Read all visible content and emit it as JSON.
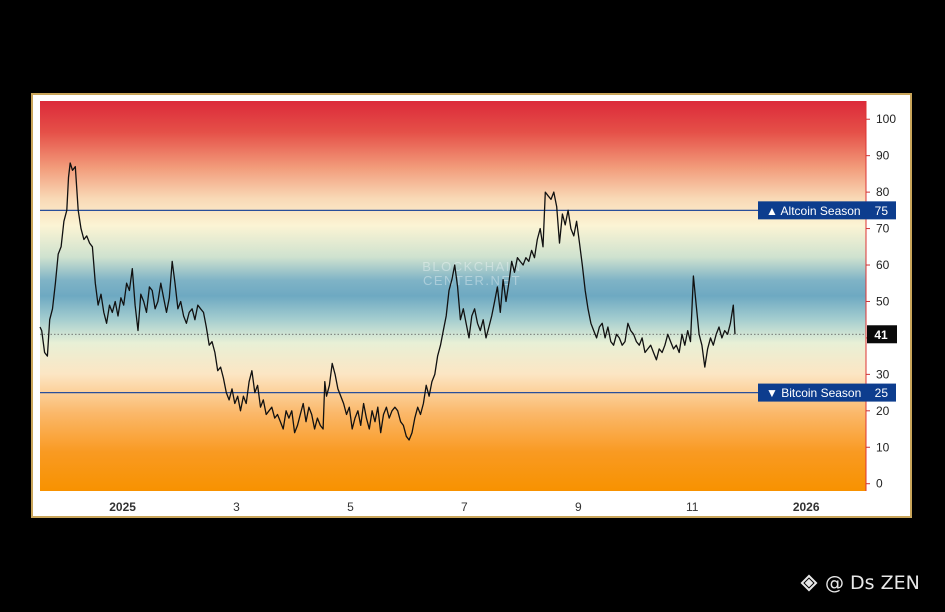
{
  "chart_data": {
    "type": "line",
    "title": "",
    "xlabel": "",
    "ylabel": "",
    "ylim": [
      -2,
      105
    ],
    "y_ticks": [
      "0",
      "10",
      "20",
      "30",
      "40",
      "50",
      "60",
      "70",
      "80",
      "90",
      "100"
    ],
    "x_ticks": [
      "2025",
      "3",
      "5",
      "7",
      "9",
      "11",
      "2026"
    ],
    "x_tick_months": [
      0,
      2,
      4,
      6,
      8,
      10,
      12
    ],
    "x_range_months": [
      -1.45,
      13.05
    ],
    "current_value": "41",
    "thresholds": [
      {
        "label": "▲ Altcoin Season",
        "value": 75,
        "value_label": "75"
      },
      {
        "label": "▼ Bitcoin Season",
        "value": 25,
        "value_label": "25"
      }
    ],
    "gridlines": false,
    "background": "red-to-orange gradient bands",
    "series": [
      {
        "color": "#111111",
        "points": [
          [
            -1.45,
            43
          ],
          [
            -1.42,
            42
          ],
          [
            -1.37,
            36
          ],
          [
            -1.32,
            35
          ],
          [
            -1.28,
            45
          ],
          [
            -1.23,
            48
          ],
          [
            -1.18,
            55
          ],
          [
            -1.13,
            63
          ],
          [
            -1.08,
            65
          ],
          [
            -1.03,
            72
          ],
          [
            -0.98,
            75
          ],
          [
            -0.95,
            84
          ],
          [
            -0.92,
            88
          ],
          [
            -0.88,
            86
          ],
          [
            -0.83,
            87
          ],
          [
            -0.78,
            75
          ],
          [
            -0.73,
            70
          ],
          [
            -0.68,
            67
          ],
          [
            -0.63,
            68
          ],
          [
            -0.58,
            66
          ],
          [
            -0.53,
            65
          ],
          [
            -0.48,
            55
          ],
          [
            -0.43,
            49
          ],
          [
            -0.38,
            52
          ],
          [
            -0.33,
            47
          ],
          [
            -0.28,
            44
          ],
          [
            -0.23,
            49
          ],
          [
            -0.18,
            47
          ],
          [
            -0.13,
            50
          ],
          [
            -0.08,
            46
          ],
          [
            -0.03,
            51
          ],
          [
            0.02,
            49
          ],
          [
            0.07,
            55
          ],
          [
            0.12,
            53
          ],
          [
            0.17,
            59
          ],
          [
            0.22,
            49
          ],
          [
            0.27,
            42
          ],
          [
            0.32,
            52
          ],
          [
            0.37,
            50
          ],
          [
            0.42,
            47
          ],
          [
            0.47,
            54
          ],
          [
            0.52,
            53
          ],
          [
            0.57,
            48
          ],
          [
            0.62,
            50
          ],
          [
            0.67,
            55
          ],
          [
            0.72,
            51
          ],
          [
            0.77,
            47
          ],
          [
            0.82,
            51
          ],
          [
            0.87,
            61
          ],
          [
            0.92,
            55
          ],
          [
            0.97,
            48
          ],
          [
            1.02,
            50
          ],
          [
            1.07,
            46
          ],
          [
            1.12,
            44
          ],
          [
            1.17,
            47
          ],
          [
            1.22,
            48
          ],
          [
            1.27,
            45
          ],
          [
            1.32,
            49
          ],
          [
            1.37,
            48
          ],
          [
            1.42,
            47
          ],
          [
            1.47,
            43
          ],
          [
            1.52,
            38
          ],
          [
            1.57,
            39
          ],
          [
            1.62,
            36
          ],
          [
            1.67,
            31
          ],
          [
            1.72,
            32
          ],
          [
            1.77,
            29
          ],
          [
            1.82,
            25
          ],
          [
            1.87,
            23
          ],
          [
            1.92,
            26
          ],
          [
            1.97,
            22
          ],
          [
            2.02,
            24
          ],
          [
            2.07,
            20
          ],
          [
            2.12,
            24
          ],
          [
            2.17,
            22
          ],
          [
            2.22,
            28
          ],
          [
            2.27,
            31
          ],
          [
            2.32,
            25
          ],
          [
            2.37,
            27
          ],
          [
            2.42,
            21
          ],
          [
            2.47,
            23
          ],
          [
            2.52,
            19
          ],
          [
            2.57,
            20
          ],
          [
            2.62,
            21
          ],
          [
            2.67,
            18
          ],
          [
            2.72,
            19
          ],
          [
            2.77,
            17
          ],
          [
            2.82,
            15
          ],
          [
            2.87,
            20
          ],
          [
            2.92,
            18
          ],
          [
            2.97,
            20
          ],
          [
            3.02,
            14
          ],
          [
            3.07,
            16
          ],
          [
            3.12,
            19
          ],
          [
            3.17,
            22
          ],
          [
            3.22,
            17
          ],
          [
            3.27,
            21
          ],
          [
            3.32,
            19
          ],
          [
            3.37,
            15
          ],
          [
            3.42,
            18
          ],
          [
            3.47,
            16
          ],
          [
            3.52,
            15
          ],
          [
            3.55,
            28
          ],
          [
            3.58,
            24
          ],
          [
            3.63,
            27
          ],
          [
            3.68,
            33
          ],
          [
            3.73,
            30
          ],
          [
            3.78,
            26
          ],
          [
            3.83,
            24
          ],
          [
            3.88,
            22
          ],
          [
            3.93,
            19
          ],
          [
            3.98,
            21
          ],
          [
            4.03,
            15
          ],
          [
            4.08,
            18
          ],
          [
            4.13,
            20
          ],
          [
            4.18,
            16
          ],
          [
            4.23,
            22
          ],
          [
            4.28,
            18
          ],
          [
            4.33,
            15
          ],
          [
            4.38,
            20
          ],
          [
            4.43,
            17
          ],
          [
            4.48,
            21
          ],
          [
            4.53,
            14
          ],
          [
            4.58,
            19
          ],
          [
            4.63,
            21
          ],
          [
            4.68,
            18
          ],
          [
            4.73,
            20
          ],
          [
            4.78,
            21
          ],
          [
            4.83,
            20
          ],
          [
            4.88,
            17
          ],
          [
            4.93,
            16
          ],
          [
            4.98,
            13
          ],
          [
            5.03,
            12
          ],
          [
            5.08,
            14
          ],
          [
            5.13,
            18
          ],
          [
            5.18,
            21
          ],
          [
            5.23,
            19
          ],
          [
            5.28,
            22
          ],
          [
            5.33,
            27
          ],
          [
            5.38,
            24
          ],
          [
            5.43,
            28
          ],
          [
            5.48,
            30
          ],
          [
            5.53,
            35
          ],
          [
            5.58,
            38
          ],
          [
            5.63,
            42
          ],
          [
            5.68,
            46
          ],
          [
            5.73,
            53
          ],
          [
            5.78,
            56
          ],
          [
            5.83,
            60
          ],
          [
            5.88,
            54
          ],
          [
            5.93,
            45
          ],
          [
            5.98,
            48
          ],
          [
            6.03,
            44
          ],
          [
            6.08,
            40
          ],
          [
            6.13,
            46
          ],
          [
            6.18,
            48
          ],
          [
            6.23,
            44
          ],
          [
            6.28,
            42
          ],
          [
            6.33,
            45
          ],
          [
            6.38,
            40
          ],
          [
            6.43,
            43
          ],
          [
            6.48,
            46
          ],
          [
            6.53,
            50
          ],
          [
            6.58,
            54
          ],
          [
            6.63,
            47
          ],
          [
            6.68,
            56
          ],
          [
            6.73,
            50
          ],
          [
            6.78,
            55
          ],
          [
            6.83,
            61
          ],
          [
            6.88,
            58
          ],
          [
            6.93,
            62
          ],
          [
            6.98,
            61
          ],
          [
            7.03,
            60
          ],
          [
            7.08,
            62
          ],
          [
            7.13,
            61
          ],
          [
            7.18,
            64
          ],
          [
            7.23,
            62
          ],
          [
            7.28,
            67
          ],
          [
            7.33,
            70
          ],
          [
            7.38,
            65
          ],
          [
            7.42,
            80
          ],
          [
            7.47,
            79
          ],
          [
            7.52,
            78
          ],
          [
            7.57,
            80
          ],
          [
            7.62,
            76
          ],
          [
            7.67,
            66
          ],
          [
            7.72,
            74
          ],
          [
            7.77,
            71
          ],
          [
            7.82,
            75
          ],
          [
            7.87,
            70
          ],
          [
            7.92,
            68
          ],
          [
            7.97,
            72
          ],
          [
            8.02,
            66
          ],
          [
            8.07,
            60
          ],
          [
            8.12,
            53
          ],
          [
            8.17,
            48
          ],
          [
            8.22,
            44
          ],
          [
            8.27,
            42
          ],
          [
            8.32,
            40
          ],
          [
            8.37,
            43
          ],
          [
            8.42,
            44
          ],
          [
            8.47,
            40
          ],
          [
            8.52,
            43
          ],
          [
            8.57,
            39
          ],
          [
            8.62,
            38
          ],
          [
            8.67,
            41
          ],
          [
            8.72,
            40
          ],
          [
            8.77,
            38
          ],
          [
            8.82,
            39
          ],
          [
            8.87,
            44
          ],
          [
            8.92,
            42
          ],
          [
            8.97,
            41
          ],
          [
            9.02,
            39
          ],
          [
            9.07,
            38
          ],
          [
            9.12,
            40
          ],
          [
            9.17,
            36
          ],
          [
            9.22,
            37
          ],
          [
            9.27,
            38
          ],
          [
            9.32,
            36
          ],
          [
            9.37,
            34
          ],
          [
            9.42,
            37
          ],
          [
            9.47,
            36
          ],
          [
            9.52,
            38
          ],
          [
            9.57,
            41
          ],
          [
            9.62,
            39
          ],
          [
            9.67,
            37
          ],
          [
            9.72,
            38
          ],
          [
            9.77,
            36
          ],
          [
            9.82,
            41
          ],
          [
            9.87,
            38
          ],
          [
            9.92,
            42
          ],
          [
            9.97,
            39
          ],
          [
            10.02,
            57
          ],
          [
            10.07,
            49
          ],
          [
            10.12,
            41
          ],
          [
            10.17,
            38
          ],
          [
            10.22,
            32
          ],
          [
            10.27,
            37
          ],
          [
            10.32,
            40
          ],
          [
            10.37,
            38
          ],
          [
            10.42,
            41
          ],
          [
            10.47,
            43
          ],
          [
            10.52,
            40
          ],
          [
            10.57,
            42
          ],
          [
            10.62,
            41
          ],
          [
            10.67,
            44
          ],
          [
            10.72,
            49
          ],
          [
            10.75,
            41
          ]
        ]
      }
    ]
  },
  "watermark": {
    "logo": "binance-diamond-icon",
    "text": "@ Ds ZEN"
  },
  "source_watermark": {
    "line1": "BLOCKCHAIN",
    "line2": "CENTER.NET"
  }
}
